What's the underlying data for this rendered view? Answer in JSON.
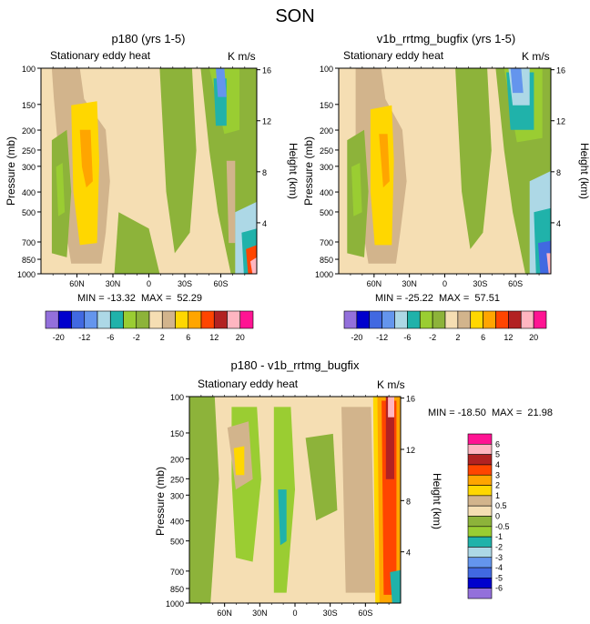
{
  "figure_title": "SON",
  "chart_data": [
    {
      "type": "heatmap",
      "title": "p180 (yrs 1-5)",
      "left_label": "Stationary eddy heat",
      "units": "K m/s",
      "xlabel": "",
      "ylabel": "Pressure (mb)",
      "ylabel_right": "Height (km)",
      "x_ticks": [
        "60N",
        "30N",
        "0",
        "30S",
        "60S"
      ],
      "y_ticks": [
        "100",
        "150",
        "200",
        "250",
        "300",
        "400",
        "500",
        "700",
        "850",
        "1000"
      ],
      "y_right_ticks": [
        "16",
        "12",
        "8",
        "4"
      ],
      "ylim": [
        1000,
        100
      ],
      "stats": "MIN = -13.32  MAX =  52.29",
      "levels": [
        -20,
        -12,
        -6,
        -2,
        2,
        6,
        12,
        20
      ],
      "level_labels": [
        "-20",
        "-12",
        "-6",
        "-2",
        "2",
        "6",
        "12",
        "20"
      ]
    },
    {
      "type": "heatmap",
      "title": "v1b_rrtmg_bugfix (yrs 1-5)",
      "left_label": "Stationary eddy heat",
      "units": "K m/s",
      "xlabel": "",
      "ylabel": "Pressure (mb)",
      "ylabel_right": "Height (km)",
      "x_ticks": [
        "60N",
        "30N",
        "0",
        "30S",
        "60S"
      ],
      "y_ticks": [
        "100",
        "150",
        "200",
        "250",
        "300",
        "400",
        "500",
        "700",
        "850",
        "1000"
      ],
      "y_right_ticks": [
        "16",
        "12",
        "8",
        "4"
      ],
      "ylim": [
        1000,
        100
      ],
      "stats": "MIN = -25.22  MAX =  57.51",
      "levels": [
        -20,
        -12,
        -6,
        -2,
        2,
        6,
        12,
        20
      ],
      "level_labels": [
        "-20",
        "-12",
        "-6",
        "-2",
        "2",
        "6",
        "12",
        "20"
      ]
    },
    {
      "type": "heatmap",
      "title": "p180 - v1b_rrtmg_bugfix",
      "left_label": "Stationary eddy heat",
      "units": "K m/s",
      "xlabel": "",
      "ylabel": "Pressure (mb)",
      "ylabel_right": "Height (km)",
      "x_ticks": [
        "60N",
        "30N",
        "0",
        "30S",
        "60S"
      ],
      "y_ticks": [
        "100",
        "150",
        "200",
        "250",
        "300",
        "400",
        "500",
        "700",
        "850",
        "1000"
      ],
      "y_right_ticks": [
        "16",
        "12",
        "8",
        "4"
      ],
      "ylim": [
        1000,
        100
      ],
      "stats": "MIN = -18.50  MAX =  21.98",
      "levels": [
        -6,
        -5,
        -4,
        -3,
        -2,
        -1,
        -0.5,
        0,
        0.5,
        1,
        2,
        3,
        4,
        5,
        6
      ],
      "level_labels": [
        "6",
        "5",
        "4",
        "3",
        "2",
        "1",
        "0.5",
        "0",
        "-0.5",
        "-1",
        "-2",
        "-3",
        "-4",
        "-5",
        "-6"
      ]
    }
  ],
  "colors": {
    "abs_scale": [
      "#9370db",
      "#0000cd",
      "#4169e1",
      "#6495ed",
      "#add8e6",
      "#20b2aa",
      "#9acd32",
      "#8db33a",
      "#f5deb3",
      "#d2b48c",
      "#ffd700",
      "#ffa500",
      "#ff4500",
      "#b22222",
      "#ffb6c1",
      "#ff1493"
    ],
    "diff_scale": [
      "#ff1493",
      "#ffb6c1",
      "#b22222",
      "#ff4500",
      "#ffa500",
      "#ffd700",
      "#d2b48c",
      "#f5deb3",
      "#8db33a",
      "#9acd32",
      "#20b2aa",
      "#add8e6",
      "#6495ed",
      "#4169e1",
      "#0000cd",
      "#9370db"
    ]
  }
}
